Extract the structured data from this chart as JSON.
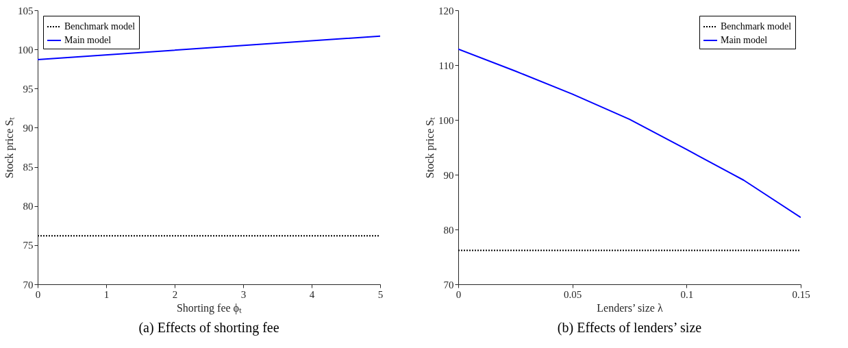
{
  "chart_data": [
    {
      "type": "line",
      "title": "(a) Effects of shorting fee",
      "xlabel": "Shorting fee ϕₜ",
      "ylabel": "Stock price Sₜ",
      "xlim": [
        0,
        5
      ],
      "ylim": [
        70,
        105
      ],
      "xticks": [
        0,
        1,
        2,
        3,
        4,
        5
      ],
      "yticks": [
        70,
        75,
        80,
        85,
        90,
        95,
        100,
        105
      ],
      "grid": false,
      "legend": "top left",
      "series": [
        {
          "name": "Benchmark model",
          "color": "#000000",
          "line_style": "dotted",
          "x": [
            0,
            5
          ],
          "values": [
            76.2,
            76.2
          ]
        },
        {
          "name": "Main model",
          "color": "#0000ff",
          "line_style": "solid",
          "x": [
            0,
            2.5,
            5
          ],
          "values": [
            98.7,
            100.2,
            101.7
          ]
        }
      ]
    },
    {
      "type": "line",
      "title": "(b) Effects of lenders’ size",
      "xlabel": "Lenders’ size λ",
      "ylabel": "Stock price Sₜ",
      "xlim": [
        0,
        0.15
      ],
      "ylim": [
        70,
        120
      ],
      "xticks": [
        0,
        0.05,
        0.1,
        0.15
      ],
      "yticks": [
        70,
        80,
        90,
        100,
        110,
        120
      ],
      "grid": false,
      "legend": "top right",
      "series": [
        {
          "name": "Benchmark model",
          "color": "#000000",
          "line_style": "dotted",
          "x": [
            0,
            0.15
          ],
          "values": [
            76.2,
            76.2
          ]
        },
        {
          "name": "Main model",
          "color": "#0000ff",
          "line_style": "solid",
          "x": [
            0,
            0.025,
            0.05,
            0.075,
            0.1,
            0.125,
            0.15
          ],
          "values": [
            112.9,
            108.9,
            104.7,
            100.1,
            94.6,
            89.0,
            82.2
          ]
        }
      ]
    }
  ]
}
